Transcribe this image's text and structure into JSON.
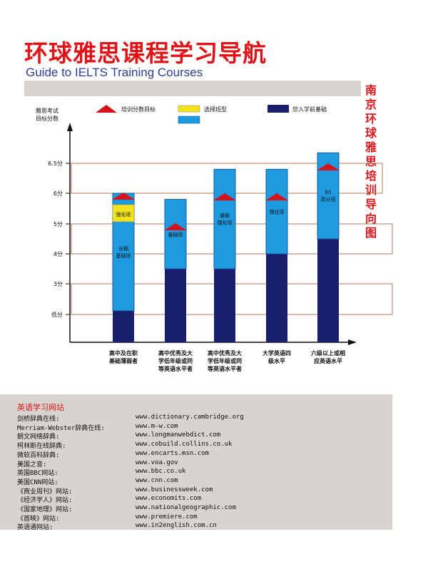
{
  "header": {
    "title_cn": "环球雅思课程学习导航",
    "title_en": "Guide to IELTS Training Courses"
  },
  "side_label": "南京环球雅思培训导向图",
  "legend": [
    {
      "label": "培训分数目标",
      "icon": "red-triangle-icon"
    },
    {
      "label": "选择班型",
      "icon": "yellow-cyan-bar-icon"
    },
    {
      "label": "您入学前基础",
      "icon": "navy-bar-icon"
    }
  ],
  "chart_data": {
    "type": "bar",
    "ylabel": "雅思考试\n目标分数",
    "yticks": [
      "低分",
      "3分",
      "4分",
      "5分",
      "6分",
      "6.5分"
    ],
    "categories": [
      "高中及在职\n基础薄弱者",
      "高中优秀及大\n学低年级或同\n等英语水平者",
      "高中优秀及大\n学低年级或同\n等英语水平者",
      "大学英语四\n级水平",
      "六级以上或相\n应英语水平"
    ],
    "series": [
      {
        "name": "您入学前基础",
        "values": [
          1.0,
          1.5,
          1.5,
          2.0,
          2.5
        ]
      },
      {
        "name": "选择班型",
        "values": [
          5.0,
          4.8,
          5.8,
          5.8,
          6.35
        ]
      },
      {
        "name": "培训分数目标",
        "values": [
          6.0,
          5.0,
          6.0,
          6.0,
          6.5
        ]
      }
    ],
    "class_labels": [
      "长期\n基础班",
      "基础班",
      "基础\n强化班",
      "强化班",
      "65\n高分班"
    ],
    "extra_label": "强化班",
    "colors": {
      "navy": "#1a1e6e",
      "cyan": "#1e9be0",
      "red": "#d4141a",
      "yellow": "#f2e21a"
    }
  },
  "footer": {
    "title": "英语学习网站",
    "sites": [
      {
        "name": "剑桥辞典在线:",
        "url": "www.dictionary.cambridge.org"
      },
      {
        "name": "Merriam-Webster辞典在线:",
        "url": "www.m-w.com"
      },
      {
        "name": "朗文网络辞典:",
        "url": "www.longmanwebdict.com"
      },
      {
        "name": "柯林斯在线辞典:",
        "url": "www.cobuild.collins.co.uk"
      },
      {
        "name": "微软百科辞典:",
        "url": "www.encarts.msn.com"
      },
      {
        "name": "美国之音:",
        "url": "www.voa.gov"
      },
      {
        "name": "英国BBC网站:",
        "url": "www.bbc.co.uk"
      },
      {
        "name": "美国CNN网站:",
        "url": "www.cnn.com"
      },
      {
        "name": "《商业周刊》网站:",
        "url": "www.businessweek.com"
      },
      {
        "name": "《经济学人》网站:",
        "url": "www.economits.com"
      },
      {
        "name": "《国家地理》网站:",
        "url": "www.nationalgeographic.com"
      },
      {
        "name": "《首映》网站:",
        "url": "www.premiere.com"
      },
      {
        "name": "英语通网站:",
        "url": "www.in2english.com.cn"
      }
    ]
  }
}
